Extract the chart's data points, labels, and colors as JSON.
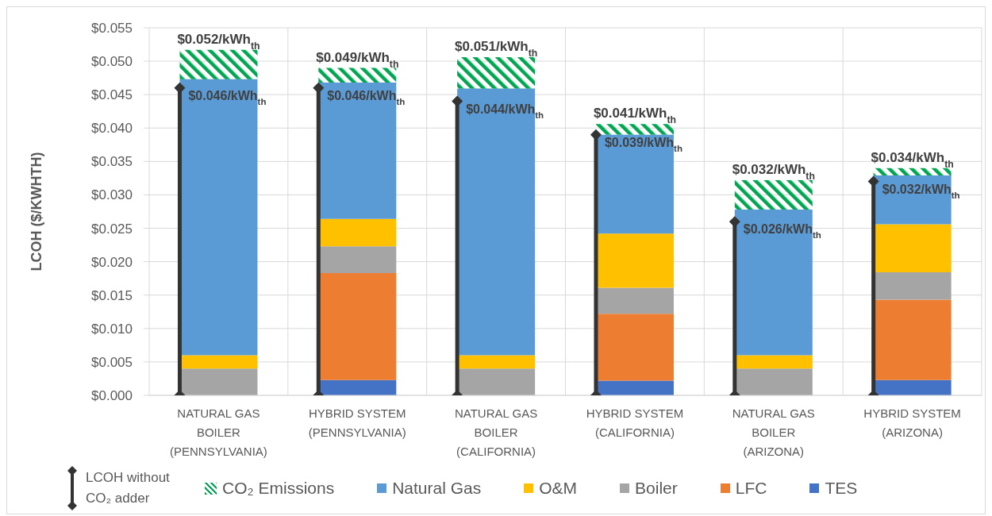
{
  "chart_data": {
    "type": "bar",
    "ylabel": "LCOH ($/KWHTH)",
    "categories": [
      "NATURAL GAS BOILER (PENNSYLVANIA)",
      "HYBRID SYSTEM (PENNSYLVANIA)",
      "NATURAL GAS BOILER (CALIFORNIA)",
      "HYBRID SYSTEM (CALIFORNIA)",
      "NATURAL GAS BOILER (ARIZONA)",
      "HYBRID SYSTEM (ARIZONA)"
    ],
    "series": [
      {
        "name": "TES",
        "color": "#4472c4",
        "values": [
          null,
          0.0023,
          null,
          0.0022,
          null,
          0.0023
        ]
      },
      {
        "name": "LFC",
        "color": "#ed7d31",
        "values": [
          null,
          0.016,
          null,
          0.01,
          null,
          0.012
        ]
      },
      {
        "name": "Boiler",
        "color": "#a5a5a5",
        "values": [
          0.004,
          0.004,
          0.004,
          0.0039,
          0.004,
          0.0041
        ]
      },
      {
        "name": "O&M",
        "color": "#ffc000",
        "values": [
          0.002,
          0.0041,
          0.002,
          0.0081,
          0.002,
          0.0072
        ]
      },
      {
        "name": "Natural Gas",
        "color": "#5b9bd5",
        "values": [
          0.0413,
          0.0204,
          0.0399,
          0.0148,
          0.0218,
          0.0073
        ]
      },
      {
        "name": "CO₂ Emissions",
        "color": "#00a651",
        "values": [
          0.0044,
          0.0022,
          0.0047,
          0.0016,
          0.0044,
          0.0011
        ]
      },
      {
        "name": "LCOH without CO₂ adder",
        "type": "lollipop",
        "color": "#333333",
        "values": [
          0.046,
          0.046,
          0.044,
          0.039,
          0.026,
          0.032
        ],
        "value_labels": [
          "$0.046/kWh$_{th}$",
          "$0.046/kWh$_{th}$",
          "$0.044/kWh$_{th}$",
          "$0.039/kWh$_{th}$",
          "$0.026/kWh$_{th}$",
          "$0.032/kWh$_{th}$"
        ]
      }
    ],
    "stacked": true,
    "totals": [
      "$0.052/kWh$_{th}$",
      "$0.049/kWh$_{th}$",
      "$0.051/kWh$_{th}$",
      "$0.041/kWh$_{th}$",
      "$0.032/kWh$_{th}$",
      "$0.034/kWh$_{th}$"
    ],
    "ylim": [
      0,
      0.055
    ],
    "yticks": [
      {
        "value": 0,
        "label": "$0.000"
      },
      {
        "value": 0.005,
        "label": "$0.005"
      },
      {
        "value": 0.01,
        "label": "$0.010"
      },
      {
        "value": 0.015,
        "label": "$0.015"
      },
      {
        "value": 0.02,
        "label": "$0.020"
      },
      {
        "value": 0.025,
        "label": "$0.025"
      },
      {
        "value": 0.03,
        "label": "$0.030"
      },
      {
        "value": 0.035,
        "label": "$0.035"
      },
      {
        "value": 0.04,
        "label": "$0.040"
      },
      {
        "value": 0.045,
        "label": "$0.045"
      },
      {
        "value": 0.05,
        "label": "$0.050"
      },
      {
        "value": 0.055,
        "label": "$0.055"
      }
    ],
    "grid": true,
    "legend": "bottom",
    "marker": "diamond"
  }
}
